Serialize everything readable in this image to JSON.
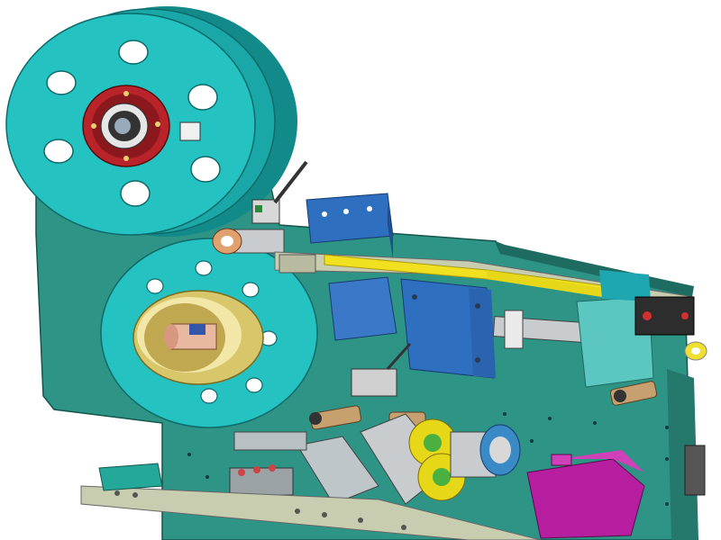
{
  "image": {
    "kind": "3D CAD render of a label applicator machine",
    "background": "#ffffff"
  },
  "colors": {
    "plate_teal": "#2e9486",
    "plate_dark": "#1e6b62",
    "reel_cyan": "#25c2c2",
    "reel_edge": "#138a8a",
    "hub_red": "#b8242a",
    "brass": "#d8c66a",
    "yellow_strip": "#f0e020",
    "blue_block": "#2f6fc0",
    "motor_purple": "#b81ea0",
    "dark_gray": "#3c3c3c",
    "steel": "#bcc4c8",
    "olive_rail": "#c9cdb0"
  }
}
